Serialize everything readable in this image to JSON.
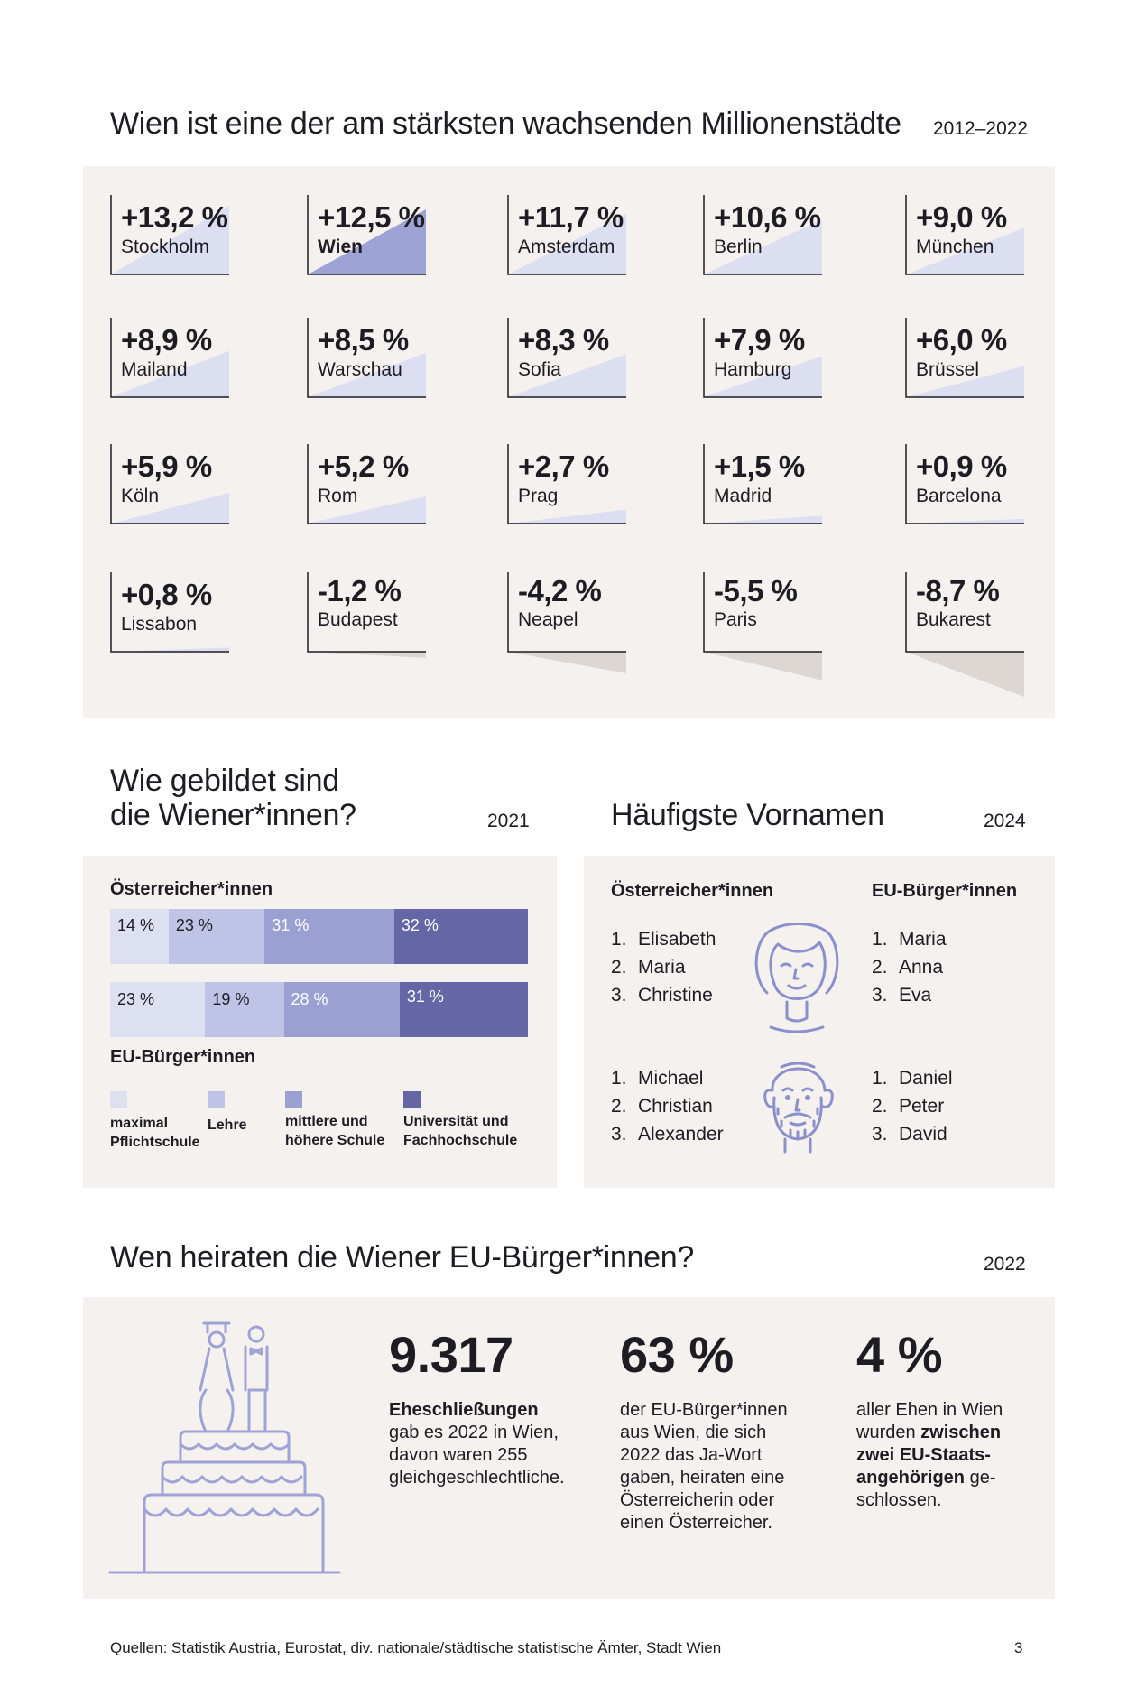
{
  "growth": {
    "title": "Wien ist eine der am stärksten wachsenden Millionenstädte",
    "year": "2012–2022",
    "cities": [
      {
        "pct": "+13,2 %",
        "city": "Stockholm",
        "value": 13.2,
        "highlight": false
      },
      {
        "pct": "+12,5 %",
        "city": "Wien",
        "value": 12.5,
        "highlight": true
      },
      {
        "pct": "+11,7 %",
        "city": "Amsterdam",
        "value": 11.7,
        "highlight": false
      },
      {
        "pct": "+10,6 %",
        "city": "Berlin",
        "value": 10.6,
        "highlight": false
      },
      {
        "pct": "+9,0 %",
        "city": "München",
        "value": 9.0,
        "highlight": false
      },
      {
        "pct": "+8,9 %",
        "city": "Mailand",
        "value": 8.9,
        "highlight": false
      },
      {
        "pct": "+8,5 %",
        "city": "Warschau",
        "value": 8.5,
        "highlight": false
      },
      {
        "pct": "+8,3 %",
        "city": "Sofia",
        "value": 8.3,
        "highlight": false
      },
      {
        "pct": "+7,9 %",
        "city": "Hamburg",
        "value": 7.9,
        "highlight": false
      },
      {
        "pct": "+6,0 %",
        "city": "Brüssel",
        "value": 6.0,
        "highlight": false
      },
      {
        "pct": "+5,9 %",
        "city": "Köln",
        "value": 5.9,
        "highlight": false
      },
      {
        "pct": "+5,2 %",
        "city": "Rom",
        "value": 5.2,
        "highlight": false
      },
      {
        "pct": "+2,7 %",
        "city": "Prag",
        "value": 2.7,
        "highlight": false
      },
      {
        "pct": "+1,5 %",
        "city": "Madrid",
        "value": 1.5,
        "highlight": false
      },
      {
        "pct": "+0,9 %",
        "city": "Barcelona",
        "value": 0.9,
        "highlight": false
      },
      {
        "pct": "+0,8 %",
        "city": "Lissabon",
        "value": 0.8,
        "highlight": false
      },
      {
        "pct": "-1,2 %",
        "city": "Budapest",
        "value": -1.2,
        "highlight": false
      },
      {
        "pct": "-4,2 %",
        "city": "Neapel",
        "value": -4.2,
        "highlight": false
      },
      {
        "pct": "-5,5 %",
        "city": "Paris",
        "value": -5.5,
        "highlight": false
      },
      {
        "pct": "-8,7 %",
        "city": "Bukarest",
        "value": -8.7,
        "highlight": false
      }
    ]
  },
  "education": {
    "title_line1": "Wie gebildet sind",
    "title_line2": "die Wiener*innen?",
    "year": "2021",
    "group_at": "Österreicher*innen",
    "group_eu": "EU-Bürger*innen",
    "at_labels": [
      "14 %",
      "23 %",
      "31 %",
      "32 %"
    ],
    "at_values": [
      14,
      23,
      31,
      32
    ],
    "eu_labels": [
      "23 %",
      "19 %",
      "28 %",
      "31 %"
    ],
    "eu_values": [
      23,
      19,
      28,
      31
    ],
    "legend": [
      {
        "line1": "maximal",
        "line2": "Pflichtschule"
      },
      {
        "line1": "Lehre",
        "line2": ""
      },
      {
        "line1": "mittlere und",
        "line2": "höhere Schule"
      },
      {
        "line1": "Universität und",
        "line2": "Fachhochschule"
      }
    ],
    "colors": [
      "#dde0f1",
      "#bfc3e6",
      "#9ba0d3",
      "#6466a6"
    ]
  },
  "names": {
    "title": "Häufigste Vornamen",
    "year": "2024",
    "col_at": "Österreicher*innen",
    "col_eu": "EU-Bürger*innen",
    "female_at": [
      "Elisabeth",
      "Maria",
      "Christine"
    ],
    "female_eu": [
      "Maria",
      "Anna",
      "Eva"
    ],
    "male_at": [
      "Michael",
      "Christian",
      "Alexander"
    ],
    "male_eu": [
      "Daniel",
      "Peter",
      "David"
    ],
    "nums": [
      "1.",
      "2.",
      "3."
    ]
  },
  "marriage": {
    "title": "Wen heiraten die Wiener EU-Bürger*innen?",
    "year": "2022",
    "stat1": {
      "big": "9.317",
      "bold": "Eheschließungen",
      "rest": "gab es 2022 in Wien, davon waren 255 gleichgeschlechtliche."
    },
    "stat2": {
      "big": "63 %",
      "rest": "der EU-Bürger*innen aus Wien, die sich 2022 das Ja-Wort gaben, heiraten eine Österreicherin oder einen Österreicher."
    },
    "stat3": {
      "big": "4 %",
      "pre": "aller Ehen in Wien wurden ",
      "bold": "zwischen zwei EU-Staats-angehörigen",
      "post": " ge-schlossen."
    }
  },
  "footer": {
    "sources": "Quellen: Statistik Austria, Eurostat, div. nationale/städtische statistische Ämter, Stadt Wien",
    "page": "3"
  }
}
